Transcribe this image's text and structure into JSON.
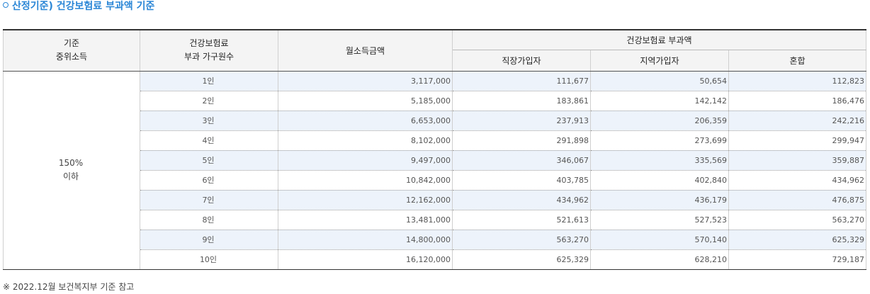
{
  "section_title": "산정기준) 건강보험료 부과액 기준",
  "table": {
    "headers": {
      "standard_line1": "기준",
      "standard_line2": "중위소득",
      "household_line1": "건강보험료",
      "household_line2": "부과 가구원수",
      "monthly_income": "월소득금액",
      "premium_group": "건강보험료 부과액",
      "employee": "직장가입자",
      "regional": "지역가입자",
      "mixed": "혼합"
    },
    "standard_value_line1": "150%",
    "standard_value_line2": "이하",
    "rows": [
      {
        "members": "1인",
        "income": "3,117,000",
        "employee": "111,677",
        "regional": "50,654",
        "mixed": "112,823"
      },
      {
        "members": "2인",
        "income": "5,185,000",
        "employee": "183,861",
        "regional": "142,142",
        "mixed": "186,476"
      },
      {
        "members": "3인",
        "income": "6,653,000",
        "employee": "237,913",
        "regional": "206,359",
        "mixed": "242,216"
      },
      {
        "members": "4인",
        "income": "8,102,000",
        "employee": "291,898",
        "regional": "273,699",
        "mixed": "299,947"
      },
      {
        "members": "5인",
        "income": "9,497,000",
        "employee": "346,067",
        "regional": "335,569",
        "mixed": "359,887"
      },
      {
        "members": "6인",
        "income": "10,842,000",
        "employee": "403,785",
        "regional": "402,840",
        "mixed": "434,962"
      },
      {
        "members": "7인",
        "income": "12,162,000",
        "employee": "434,962",
        "regional": "436,179",
        "mixed": "476,875"
      },
      {
        "members": "8인",
        "income": "13,481,000",
        "employee": "521,613",
        "regional": "527,523",
        "mixed": "563,270"
      },
      {
        "members": "9인",
        "income": "14,800,000",
        "employee": "563,270",
        "regional": "570,140",
        "mixed": "625,329"
      },
      {
        "members": "10인",
        "income": "16,120,000",
        "employee": "625,329",
        "regional": "628,210",
        "mixed": "729,187"
      }
    ]
  },
  "note": "※ 2022.12월 보건복지부 기준 참고",
  "colors": {
    "accent": "#2a86d6",
    "row_highlight": "#edf3fb",
    "header_bg": "#f4f4f4"
  }
}
